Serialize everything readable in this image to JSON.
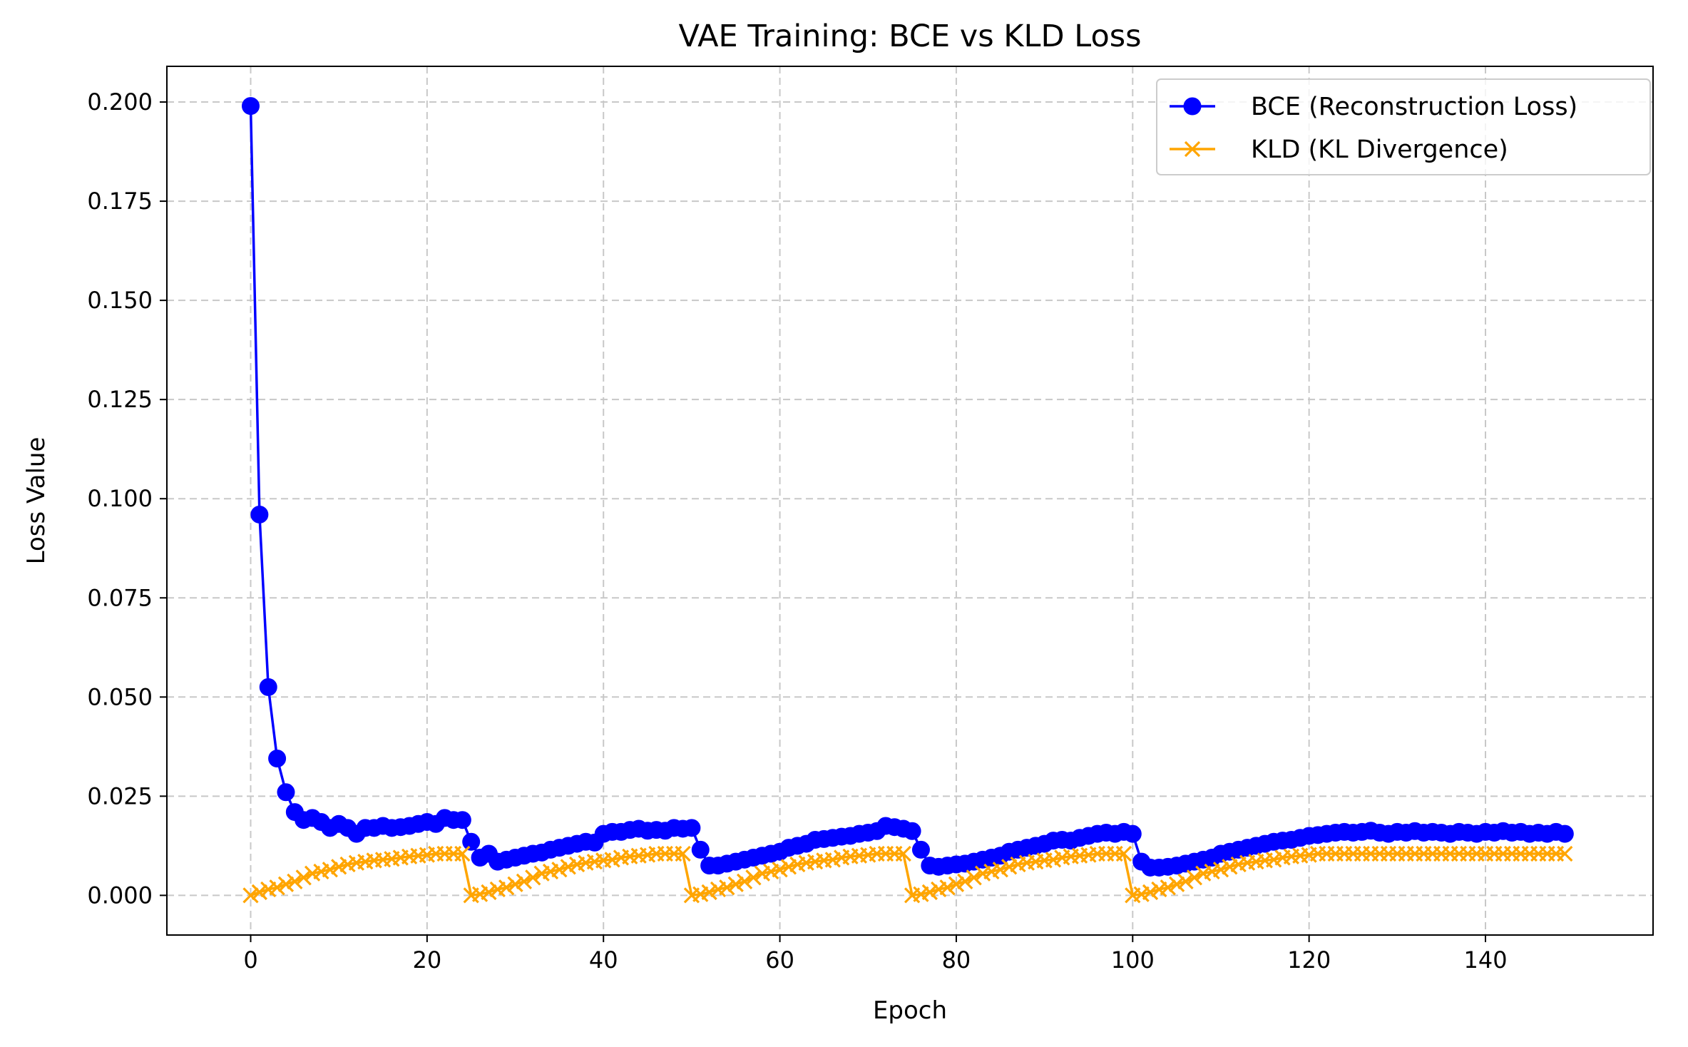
{
  "chart_data": {
    "type": "line",
    "title": "VAE Training: BCE vs KLD Loss",
    "xlabel": "Epoch",
    "ylabel": "Loss Value",
    "xlim": [
      -9.5,
      159
    ],
    "ylim": [
      -0.01,
      0.209
    ],
    "xticks": [
      0,
      20,
      40,
      60,
      80,
      100,
      120,
      140
    ],
    "yticks": [
      0.0,
      0.025,
      0.05,
      0.075,
      0.1,
      0.125,
      0.15,
      0.175,
      0.2
    ],
    "ytick_labels": [
      "0.000",
      "0.025",
      "0.050",
      "0.075",
      "0.100",
      "0.125",
      "0.150",
      "0.175",
      "0.200"
    ],
    "grid": true,
    "grid_style": "dashed",
    "legend_position": "top-right",
    "series": [
      {
        "name": "BCE (Reconstruction Loss)",
        "color": "#0000ff",
        "marker": "circle",
        "x": [
          0,
          1,
          2,
          3,
          4,
          5,
          6,
          7,
          8,
          9,
          10,
          11,
          12,
          13,
          14,
          15,
          16,
          17,
          18,
          19,
          20,
          21,
          22,
          23,
          24,
          25,
          26,
          27,
          28,
          29,
          30,
          31,
          32,
          33,
          34,
          35,
          36,
          37,
          38,
          39,
          40,
          41,
          42,
          43,
          44,
          45,
          46,
          47,
          48,
          49,
          50,
          51,
          52,
          53,
          54,
          55,
          56,
          57,
          58,
          59,
          60,
          61,
          62,
          63,
          64,
          65,
          66,
          67,
          68,
          69,
          70,
          71,
          72,
          73,
          74,
          75,
          76,
          77,
          78,
          79,
          80,
          81,
          82,
          83,
          84,
          85,
          86,
          87,
          88,
          89,
          90,
          91,
          92,
          93,
          94,
          95,
          96,
          97,
          98,
          99,
          100,
          101,
          102,
          103,
          104,
          105,
          106,
          107,
          108,
          109,
          110,
          111,
          112,
          113,
          114,
          115,
          116,
          117,
          118,
          119,
          120,
          121,
          122,
          123,
          124,
          125,
          126,
          127,
          128,
          129,
          130,
          131,
          132,
          133,
          134,
          135,
          136,
          137,
          138,
          139,
          140,
          141,
          142,
          143,
          144,
          145,
          146,
          147,
          148,
          149
        ],
        "y": [
          0.199,
          0.096,
          0.0525,
          0.0345,
          0.026,
          0.021,
          0.019,
          0.0195,
          0.0185,
          0.017,
          0.018,
          0.017,
          0.0155,
          0.017,
          0.017,
          0.0175,
          0.017,
          0.0172,
          0.0175,
          0.018,
          0.0185,
          0.018,
          0.0195,
          0.019,
          0.019,
          0.0135,
          0.0095,
          0.0105,
          0.0085,
          0.009,
          0.0095,
          0.01,
          0.0105,
          0.0108,
          0.0115,
          0.012,
          0.0125,
          0.013,
          0.0135,
          0.0133,
          0.0155,
          0.016,
          0.016,
          0.0165,
          0.0168,
          0.0163,
          0.0165,
          0.0163,
          0.017,
          0.0168,
          0.017,
          0.0115,
          0.0075,
          0.0075,
          0.008,
          0.0085,
          0.009,
          0.0095,
          0.01,
          0.0105,
          0.011,
          0.012,
          0.0125,
          0.013,
          0.014,
          0.0142,
          0.0145,
          0.0148,
          0.015,
          0.0155,
          0.0158,
          0.0162,
          0.0175,
          0.0172,
          0.0168,
          0.0162,
          0.0115,
          0.0075,
          0.0072,
          0.0075,
          0.0078,
          0.008,
          0.0085,
          0.009,
          0.0095,
          0.01,
          0.011,
          0.0115,
          0.012,
          0.0125,
          0.013,
          0.0138,
          0.014,
          0.0138,
          0.0145,
          0.015,
          0.0155,
          0.0158,
          0.0155,
          0.016,
          0.0155,
          0.0085,
          0.007,
          0.007,
          0.0072,
          0.0075,
          0.008,
          0.0085,
          0.009,
          0.0095,
          0.0105,
          0.011,
          0.0115,
          0.012,
          0.0125,
          0.013,
          0.0135,
          0.0138,
          0.014,
          0.0145,
          0.015,
          0.0152,
          0.0155,
          0.0158,
          0.016,
          0.0158,
          0.016,
          0.0163,
          0.0158,
          0.0155,
          0.016,
          0.0158,
          0.0162,
          0.0158,
          0.016,
          0.0158,
          0.0155,
          0.016,
          0.0158,
          0.0155,
          0.016,
          0.0158,
          0.0162,
          0.0158,
          0.016,
          0.0155,
          0.0158,
          0.0155,
          0.016,
          0.0155
        ],
        "y_last_fix": 0.0155
      },
      {
        "name": "KLD (KL Divergence)",
        "color": "#ffa500",
        "marker": "x",
        "x": [
          0,
          1,
          2,
          3,
          4,
          5,
          6,
          7,
          8,
          9,
          10,
          11,
          12,
          13,
          14,
          15,
          16,
          17,
          18,
          19,
          20,
          21,
          22,
          23,
          24,
          25,
          26,
          27,
          28,
          29,
          30,
          31,
          32,
          33,
          34,
          35,
          36,
          37,
          38,
          39,
          40,
          41,
          42,
          43,
          44,
          45,
          46,
          47,
          48,
          49,
          50,
          51,
          52,
          53,
          54,
          55,
          56,
          57,
          58,
          59,
          60,
          61,
          62,
          63,
          64,
          65,
          66,
          67,
          68,
          69,
          70,
          71,
          72,
          73,
          74,
          75,
          76,
          77,
          78,
          79,
          80,
          81,
          82,
          83,
          84,
          85,
          86,
          87,
          88,
          89,
          90,
          91,
          92,
          93,
          94,
          95,
          96,
          97,
          98,
          99,
          100,
          101,
          102,
          103,
          104,
          105,
          106,
          107,
          108,
          109,
          110,
          111,
          112,
          113,
          114,
          115,
          116,
          117,
          118,
          119,
          120,
          121,
          122,
          123,
          124,
          125,
          126,
          127,
          128,
          129,
          130,
          131,
          132,
          133,
          134,
          135,
          136,
          137,
          138,
          139,
          140,
          141,
          142,
          143,
          144,
          145,
          146,
          147,
          148,
          149
        ],
        "y": [
          0.0,
          0.0008,
          0.0015,
          0.002,
          0.0028,
          0.0035,
          0.0045,
          0.0055,
          0.006,
          0.0065,
          0.0072,
          0.0078,
          0.0082,
          0.0085,
          0.0088,
          0.009,
          0.0092,
          0.0095,
          0.0098,
          0.01,
          0.0102,
          0.0105,
          0.0105,
          0.0105,
          0.0105,
          0.0,
          0.0003,
          0.0008,
          0.0015,
          0.002,
          0.0028,
          0.0035,
          0.0045,
          0.0055,
          0.006,
          0.0065,
          0.0072,
          0.0078,
          0.0082,
          0.0085,
          0.0088,
          0.009,
          0.0095,
          0.0098,
          0.01,
          0.0102,
          0.0105,
          0.0105,
          0.0105,
          0.0105,
          0.0,
          0.0003,
          0.0008,
          0.0015,
          0.002,
          0.0028,
          0.0035,
          0.0045,
          0.0055,
          0.006,
          0.0065,
          0.0072,
          0.0078,
          0.0082,
          0.0085,
          0.0088,
          0.009,
          0.0095,
          0.0098,
          0.01,
          0.0102,
          0.0105,
          0.0105,
          0.0105,
          0.0105,
          0.0,
          0.0003,
          0.0008,
          0.0015,
          0.002,
          0.0028,
          0.0035,
          0.0045,
          0.0055,
          0.006,
          0.0065,
          0.0072,
          0.0078,
          0.0082,
          0.0085,
          0.0088,
          0.009,
          0.0095,
          0.0098,
          0.01,
          0.0102,
          0.0105,
          0.0105,
          0.0105,
          0.0105,
          0.0,
          0.0003,
          0.0008,
          0.0015,
          0.002,
          0.0028,
          0.0035,
          0.0045,
          0.0055,
          0.006,
          0.0065,
          0.0072,
          0.0078,
          0.0082,
          0.0085,
          0.0088,
          0.009,
          0.0095,
          0.0098,
          0.01,
          0.0102,
          0.0105,
          0.0105,
          0.0105,
          0.0105,
          0.0105,
          0.0105,
          0.0105,
          0.0105,
          0.0105,
          0.0105,
          0.0105,
          0.0105,
          0.0105,
          0.0105,
          0.0105,
          0.0105,
          0.0105,
          0.0105,
          0.0105,
          0.0105,
          0.0105,
          0.0105,
          0.0105,
          0.0105,
          0.0105,
          0.0105,
          0.0105,
          0.0105,
          0.0105
        ]
      }
    ]
  }
}
